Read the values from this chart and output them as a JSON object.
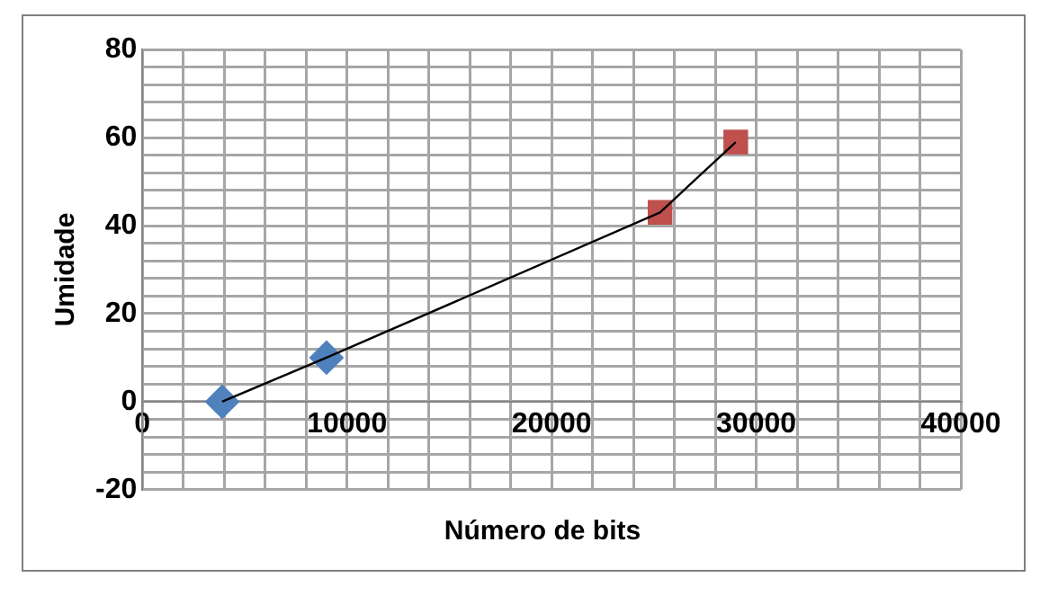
{
  "chart_data": {
    "type": "scatter",
    "xlabel": "Número de bits",
    "ylabel": "Umidade",
    "xlim": [
      0,
      40000
    ],
    "ylim": [
      -20,
      80
    ],
    "xticks": [
      0,
      {
        "value": 2000,
        "label": null
      },
      {
        "value": 4000,
        "label": null
      },
      {
        "value": 6000,
        "label": null
      },
      {
        "value": 8000,
        "label": null
      },
      10000,
      {
        "value": 12000,
        "label": null
      },
      {
        "value": 14000,
        "label": null
      },
      {
        "value": 16000,
        "label": null
      },
      {
        "value": 18000,
        "label": null
      },
      20000,
      {
        "value": 22000,
        "label": null
      },
      {
        "value": 24000,
        "label": null
      },
      {
        "value": 26000,
        "label": null
      },
      {
        "value": 28000,
        "label": null
      },
      30000,
      {
        "value": 32000,
        "label": null
      },
      {
        "value": 34000,
        "label": null
      },
      {
        "value": 36000,
        "label": null
      },
      {
        "value": 38000,
        "label": null
      },
      40000
    ],
    "yticks": [
      -20,
      {
        "value": -16,
        "label": null
      },
      {
        "value": -12,
        "label": null
      },
      {
        "value": -8,
        "label": null
      },
      {
        "value": -4,
        "label": null
      },
      0,
      {
        "value": 4,
        "label": null
      },
      {
        "value": 8,
        "label": null
      },
      {
        "value": 12,
        "label": null
      },
      {
        "value": 16,
        "label": null
      },
      20,
      {
        "value": 24,
        "label": null
      },
      {
        "value": 28,
        "label": null
      },
      {
        "value": 32,
        "label": null
      },
      {
        "value": 36,
        "label": null
      },
      40,
      {
        "value": 44,
        "label": null
      },
      {
        "value": 48,
        "label": null
      },
      {
        "value": 52,
        "label": null
      },
      {
        "value": 56,
        "label": null
      },
      60,
      {
        "value": 64,
        "label": null
      },
      {
        "value": 68,
        "label": null
      },
      {
        "value": 72,
        "label": null
      },
      {
        "value": 76,
        "label": null
      },
      80
    ],
    "grid": true,
    "legend": false,
    "series": [
      {
        "type": "line",
        "color": "#000000",
        "marker": "none",
        "line_style": "solid",
        "x": [
          3900,
          9000,
          25300,
          29000
        ],
        "values": [
          0,
          10,
          43,
          59
        ]
      },
      {
        "type": "scatter",
        "color": "#4f81bd",
        "marker": "diamond",
        "x": [
          3900,
          9000
        ],
        "values": [
          0,
          10
        ]
      },
      {
        "type": "scatter",
        "color": "#c0504d",
        "marker": "square",
        "x": [
          25300,
          29000
        ],
        "values": [
          43,
          59
        ]
      }
    ]
  }
}
